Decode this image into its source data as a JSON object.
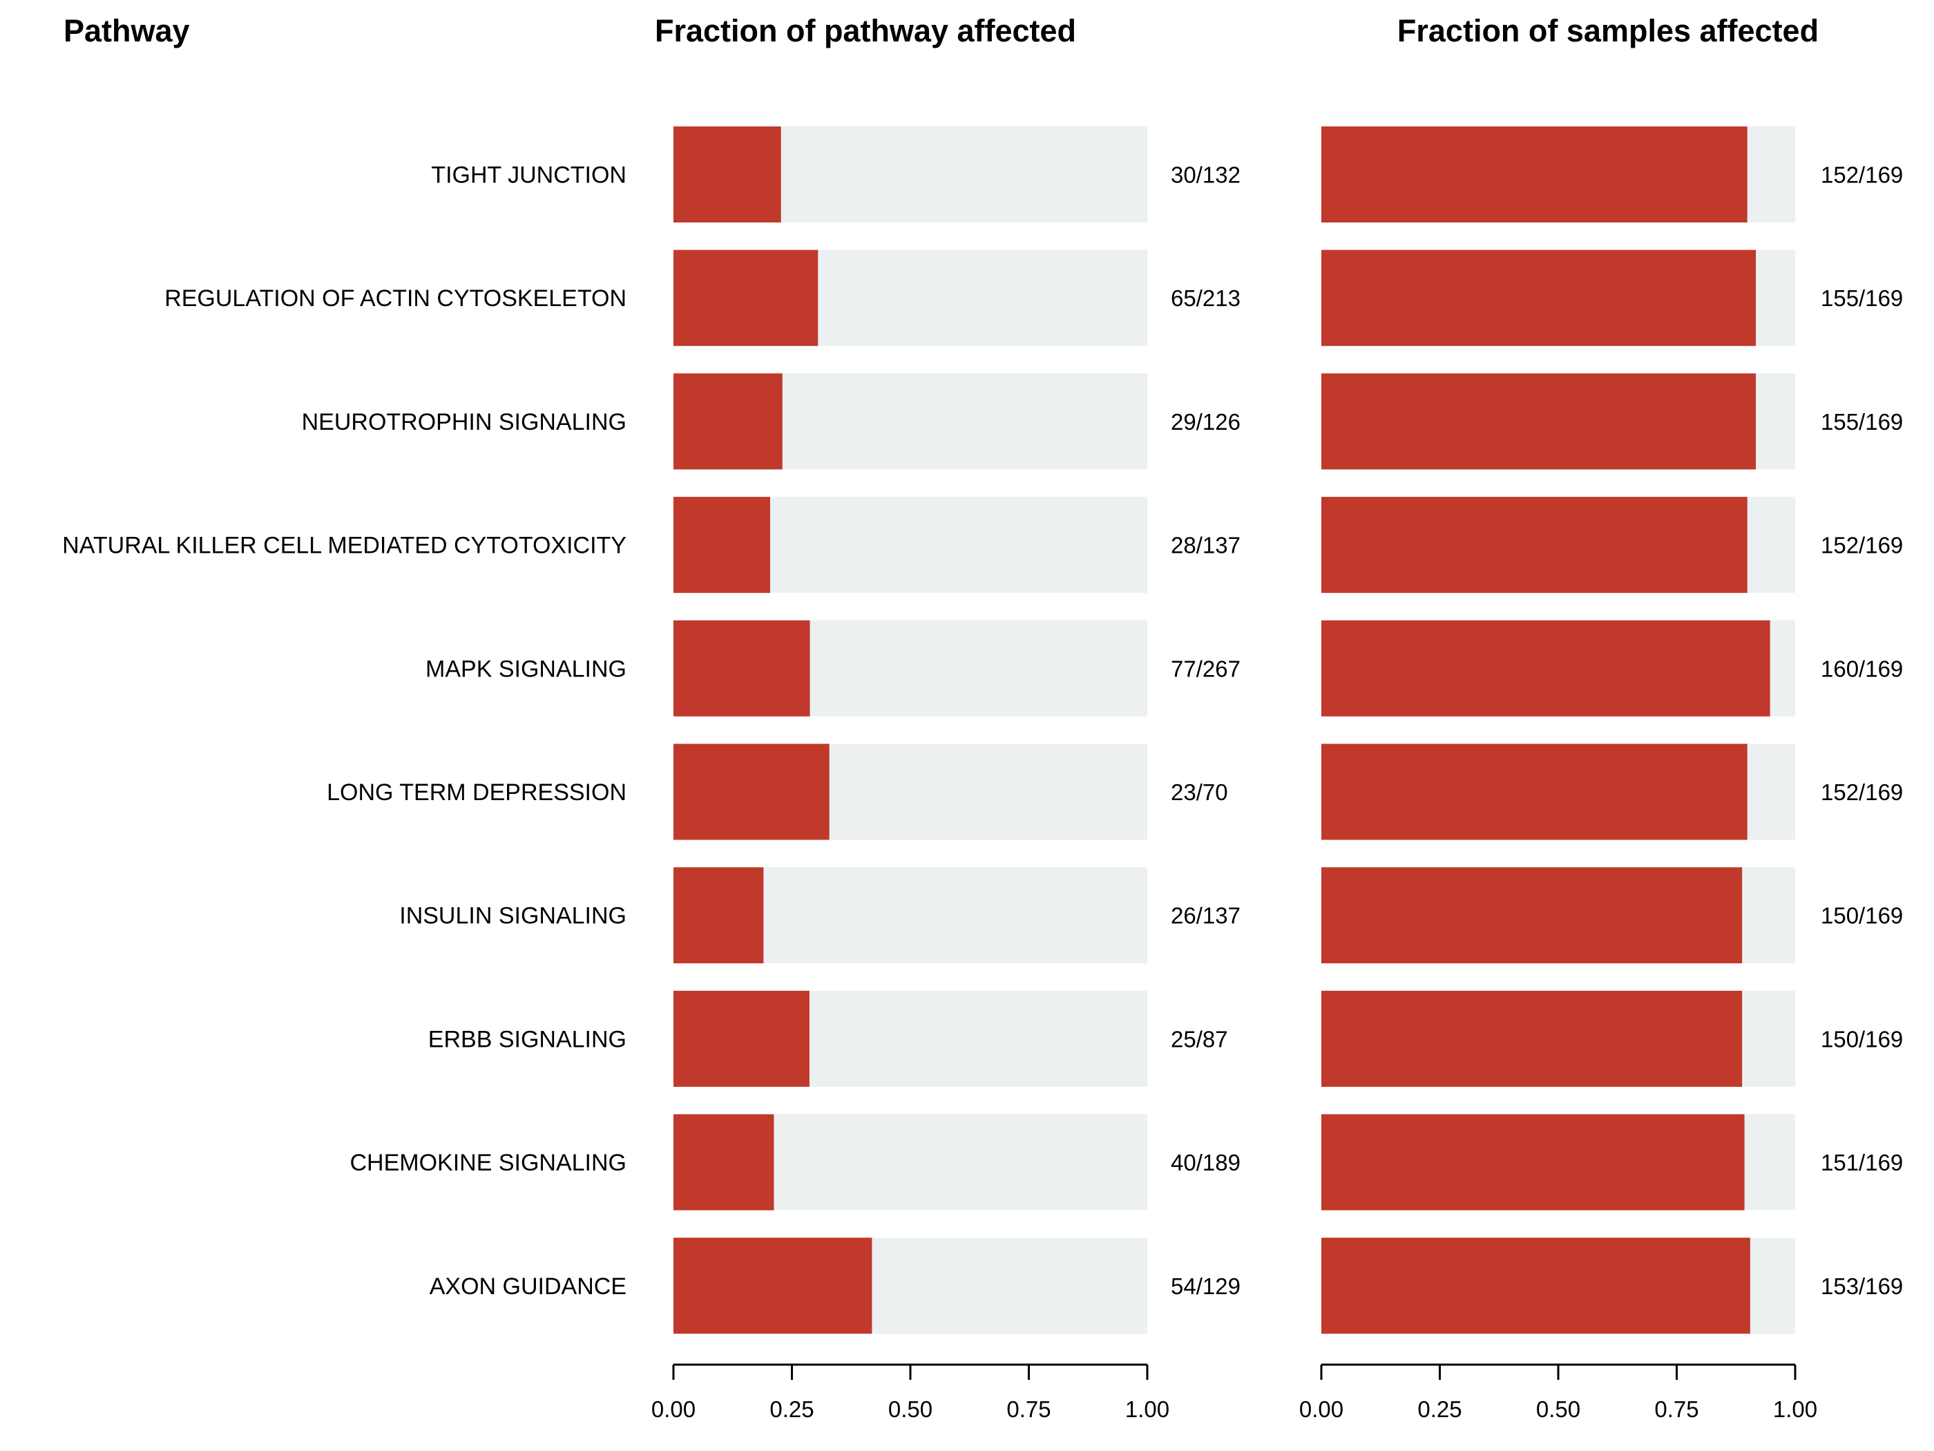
{
  "headers": {
    "pathway": "Pathway",
    "panel1": "Fraction of pathway affected",
    "panel2": "Fraction of samples affected"
  },
  "colors": {
    "fill": "#c0392b",
    "background": "#ecf0f1"
  },
  "chart_data": [
    {
      "type": "bar",
      "orientation": "horizontal",
      "title": "Fraction of pathway affected",
      "categories": [
        "TIGHT JUNCTION",
        "REGULATION OF ACTIN CYTOSKELETON",
        "NEUROTROPHIN SIGNALING",
        "NATURAL KILLER CELL MEDIATED CYTOTOXICITY",
        "MAPK SIGNALING",
        "LONG TERM DEPRESSION",
        "INSULIN SIGNALING",
        "ERBB SIGNALING",
        "CHEMOKINE SIGNALING",
        "AXON GUIDANCE"
      ],
      "values": [
        0.227,
        0.305,
        0.23,
        0.204,
        0.288,
        0.329,
        0.19,
        0.287,
        0.212,
        0.419
      ],
      "labels": [
        "30/132",
        "65/213",
        "29/126",
        "28/137",
        "77/267",
        "23/70",
        "26/137",
        "25/87",
        "40/189",
        "54/129"
      ],
      "xlim": [
        0,
        1
      ],
      "ticks": [
        "0.00",
        "0.25",
        "0.50",
        "0.75",
        "1.00"
      ]
    },
    {
      "type": "bar",
      "orientation": "horizontal",
      "title": "Fraction of samples affected",
      "categories": [
        "TIGHT JUNCTION",
        "REGULATION OF ACTIN CYTOSKELETON",
        "NEUROTROPHIN SIGNALING",
        "NATURAL KILLER CELL MEDIATED CYTOTOXICITY",
        "MAPK SIGNALING",
        "LONG TERM DEPRESSION",
        "INSULIN SIGNALING",
        "ERBB SIGNALING",
        "CHEMOKINE SIGNALING",
        "AXON GUIDANCE"
      ],
      "values": [
        0.899,
        0.917,
        0.917,
        0.899,
        0.947,
        0.899,
        0.888,
        0.888,
        0.893,
        0.905
      ],
      "labels": [
        "152/169",
        "155/169",
        "155/169",
        "152/169",
        "160/169",
        "152/169",
        "150/169",
        "150/169",
        "151/169",
        "153/169"
      ],
      "xlim": [
        0,
        1
      ],
      "ticks": [
        "0.00",
        "0.25",
        "0.50",
        "0.75",
        "1.00"
      ]
    }
  ]
}
